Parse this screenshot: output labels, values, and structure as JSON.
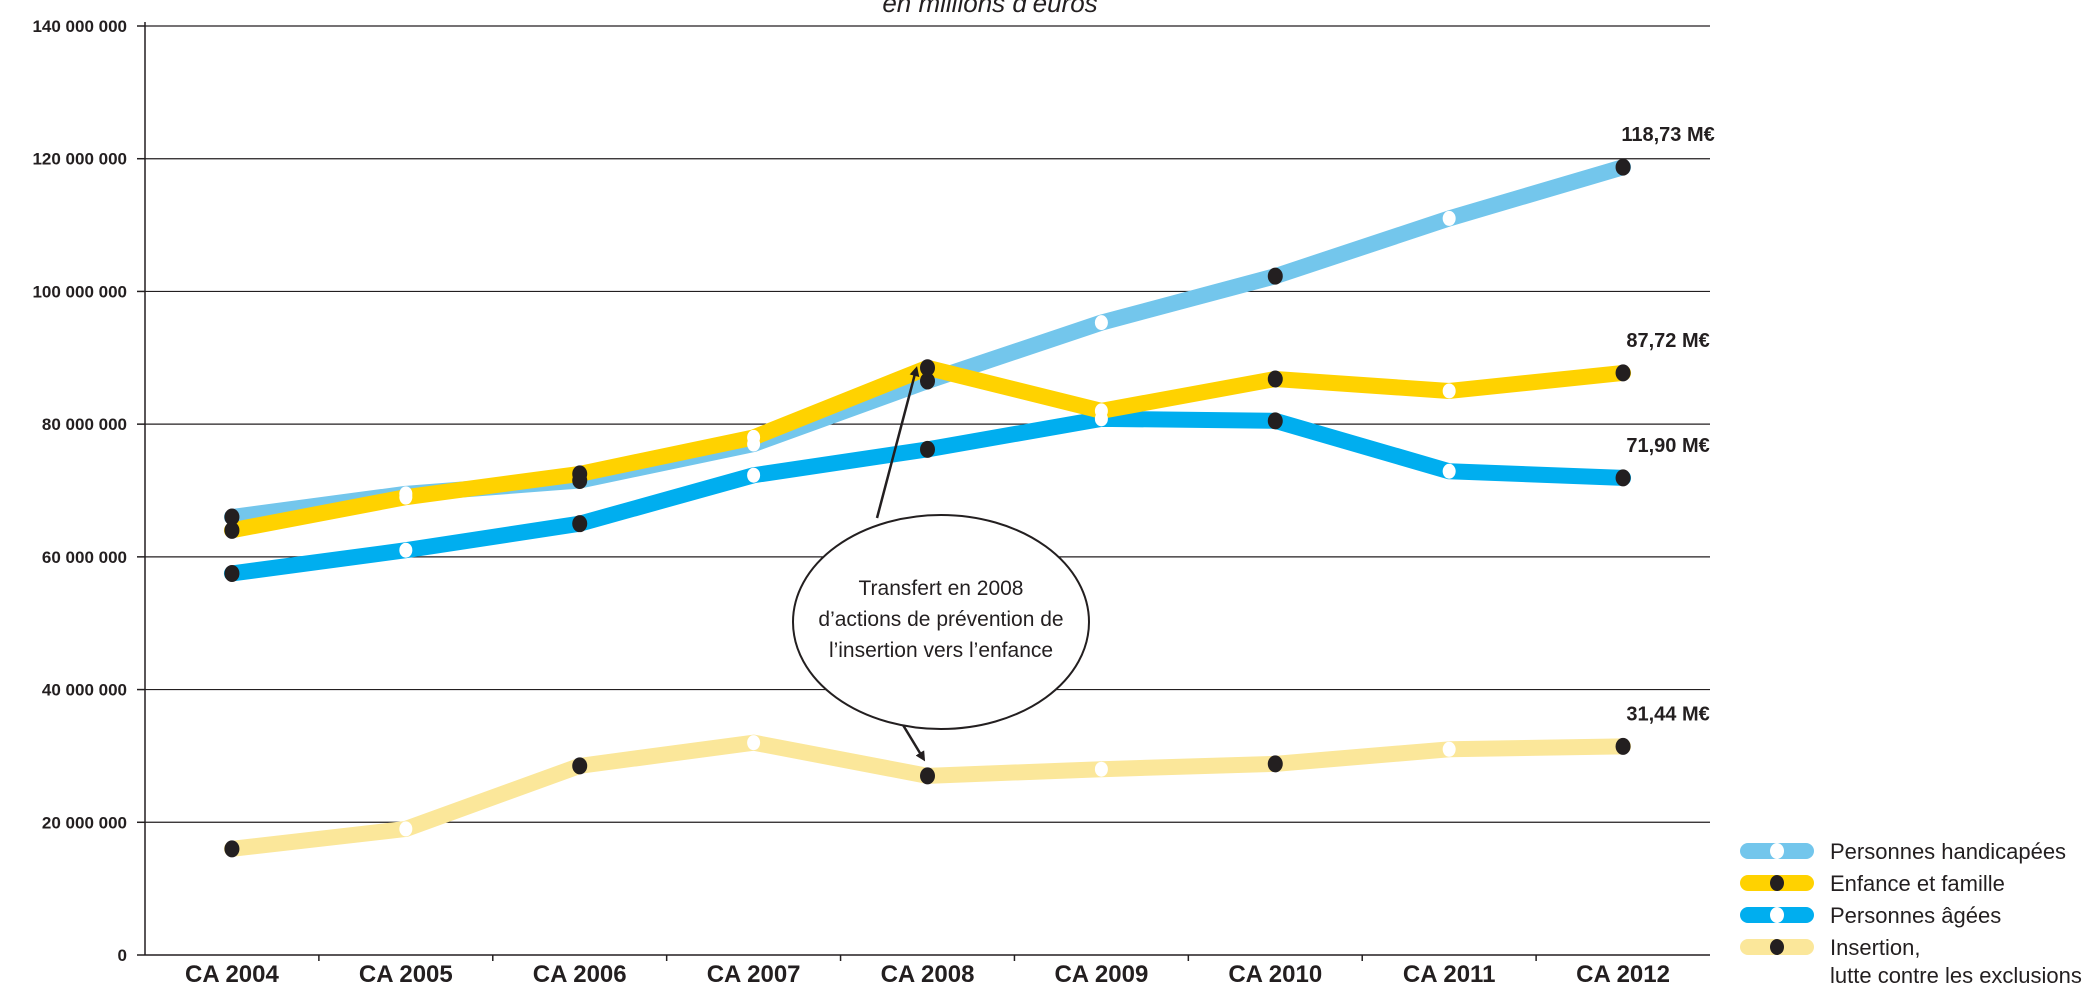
{
  "chart_data": {
    "type": "line",
    "subtitle": "en millions d’euros",
    "categories": [
      "CA 2004",
      "CA 2005",
      "CA 2006",
      "CA 2007",
      "CA 2008",
      "CA 2009",
      "CA 2010",
      "CA 2011",
      "CA 2012"
    ],
    "ylim": [
      0,
      140000000
    ],
    "yticks": [
      0,
      20000000,
      40000000,
      60000000,
      80000000,
      100000000,
      120000000,
      140000000
    ],
    "ytick_labels": [
      "0",
      "20 000 000",
      "40 000 000",
      "60 000 000",
      "80 000 000",
      "100 000 000",
      "120 000 000",
      "140 000 000"
    ],
    "grid": true,
    "legend_position": "bottom-right",
    "series": [
      {
        "name": "Personnes handicapées",
        "color": "#73c6ec",
        "marker_color": "#ffffff",
        "values": [
          66000000,
          69500000,
          71500000,
          77000000,
          86500000,
          95300000,
          102300000,
          111000000,
          118730000
        ],
        "dark_markers": [
          0,
          2,
          4,
          6,
          8
        ]
      },
      {
        "name": "Enfance et famille",
        "color": "#ffd200",
        "marker_color": "#ffffff",
        "values": [
          64000000,
          69000000,
          72500000,
          78000000,
          88500000,
          82000000,
          86800000,
          85000000,
          87720000
        ],
        "dark_markers": [
          0,
          2,
          4,
          6,
          8
        ]
      },
      {
        "name": "Personnes âgées",
        "color": "#00aeef",
        "marker_color": "#ffffff",
        "values": [
          57500000,
          61000000,
          65000000,
          72300000,
          76200000,
          80800000,
          80500000,
          72900000,
          71900000
        ],
        "dark_markers": [
          0,
          2,
          4,
          6,
          8
        ]
      },
      {
        "name": "Insertion,\nlutte contre les exclusions",
        "name_lines": [
          "Insertion,",
          "lutte contre les exclusions"
        ],
        "color": "#fbe79a",
        "marker_color": "#ffffff",
        "values": [
          16000000,
          19000000,
          28500000,
          32000000,
          27000000,
          28000000,
          28800000,
          31000000,
          31440000
        ],
        "dark_markers": [
          0,
          2,
          4,
          6,
          8
        ]
      }
    ],
    "end_labels": [
      {
        "series": 0,
        "text": "118,73 M€"
      },
      {
        "series": 1,
        "text": "87,72 M€"
      },
      {
        "series": 2,
        "text": "71,90 M€"
      },
      {
        "series": 3,
        "text": "31,44 M€"
      }
    ],
    "annotation": {
      "lines": [
        "Transfert en 2008",
        "d’actions de prévention de",
        "l’insertion vers l’enfance"
      ]
    }
  }
}
